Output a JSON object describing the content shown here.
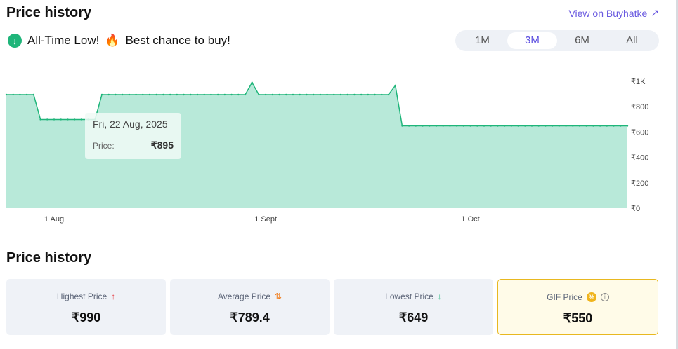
{
  "header": {
    "title": "Price history",
    "external_link": "View on Buyhatke"
  },
  "alert": {
    "text_before": "All-Time Low!",
    "fire": "🔥",
    "text_after": "Best chance to buy!"
  },
  "range_tabs": [
    {
      "label": "1M",
      "active": false
    },
    {
      "label": "3M",
      "active": true
    },
    {
      "label": "6M",
      "active": false
    },
    {
      "label": "All",
      "active": false
    }
  ],
  "tooltip": {
    "date": "Fri, 22 Aug, 2025",
    "price_label": "Price:",
    "price": "₹895"
  },
  "chart_data": {
    "type": "area",
    "x_range": [
      "2025-07-25",
      "2025-10-24"
    ],
    "ylim": [
      0,
      1000
    ],
    "y_ticks": [
      "₹0",
      "₹200",
      "₹400",
      "₹600",
      "₹800",
      "₹1K"
    ],
    "y_tick_values": [
      0,
      200,
      400,
      600,
      800,
      1000
    ],
    "x_ticks": [
      {
        "date": "2025-08-01",
        "label": "1 Aug"
      },
      {
        "date": "2025-09-01",
        "label": "1 Sept"
      },
      {
        "date": "2025-10-01",
        "label": "1 Oct"
      }
    ],
    "daily_step_changes": [
      {
        "from": "2025-07-25",
        "price": 895
      },
      {
        "from": "2025-07-30",
        "price": 699
      },
      {
        "from": "2025-08-08",
        "price": 895
      },
      {
        "from": "2025-08-30",
        "price": 990
      },
      {
        "from": "2025-08-31",
        "price": 895
      },
      {
        "from": "2025-09-20",
        "price": 967
      },
      {
        "from": "2025-09-21",
        "price": 649
      }
    ],
    "line_color": "#1fb57a",
    "fill_color": "#b8e9d9",
    "grid": false,
    "y_axis_position": "right"
  },
  "summary": {
    "title": "Price history",
    "cards": [
      {
        "label": "Highest Price",
        "icon": "arrow-up",
        "value": "₹990",
        "icon_color": "#e5484d"
      },
      {
        "label": "Average Price",
        "icon": "arrows-up-down",
        "value": "₹789.4",
        "icon_color": "#f07c1a"
      },
      {
        "label": "Lowest Price",
        "icon": "arrow-down",
        "value": "₹649",
        "icon_color": "#1fb57a"
      },
      {
        "label": "GIF Price",
        "icon": "discount-badge",
        "value": "₹550",
        "icon_color": "#f0b41c"
      }
    ]
  }
}
